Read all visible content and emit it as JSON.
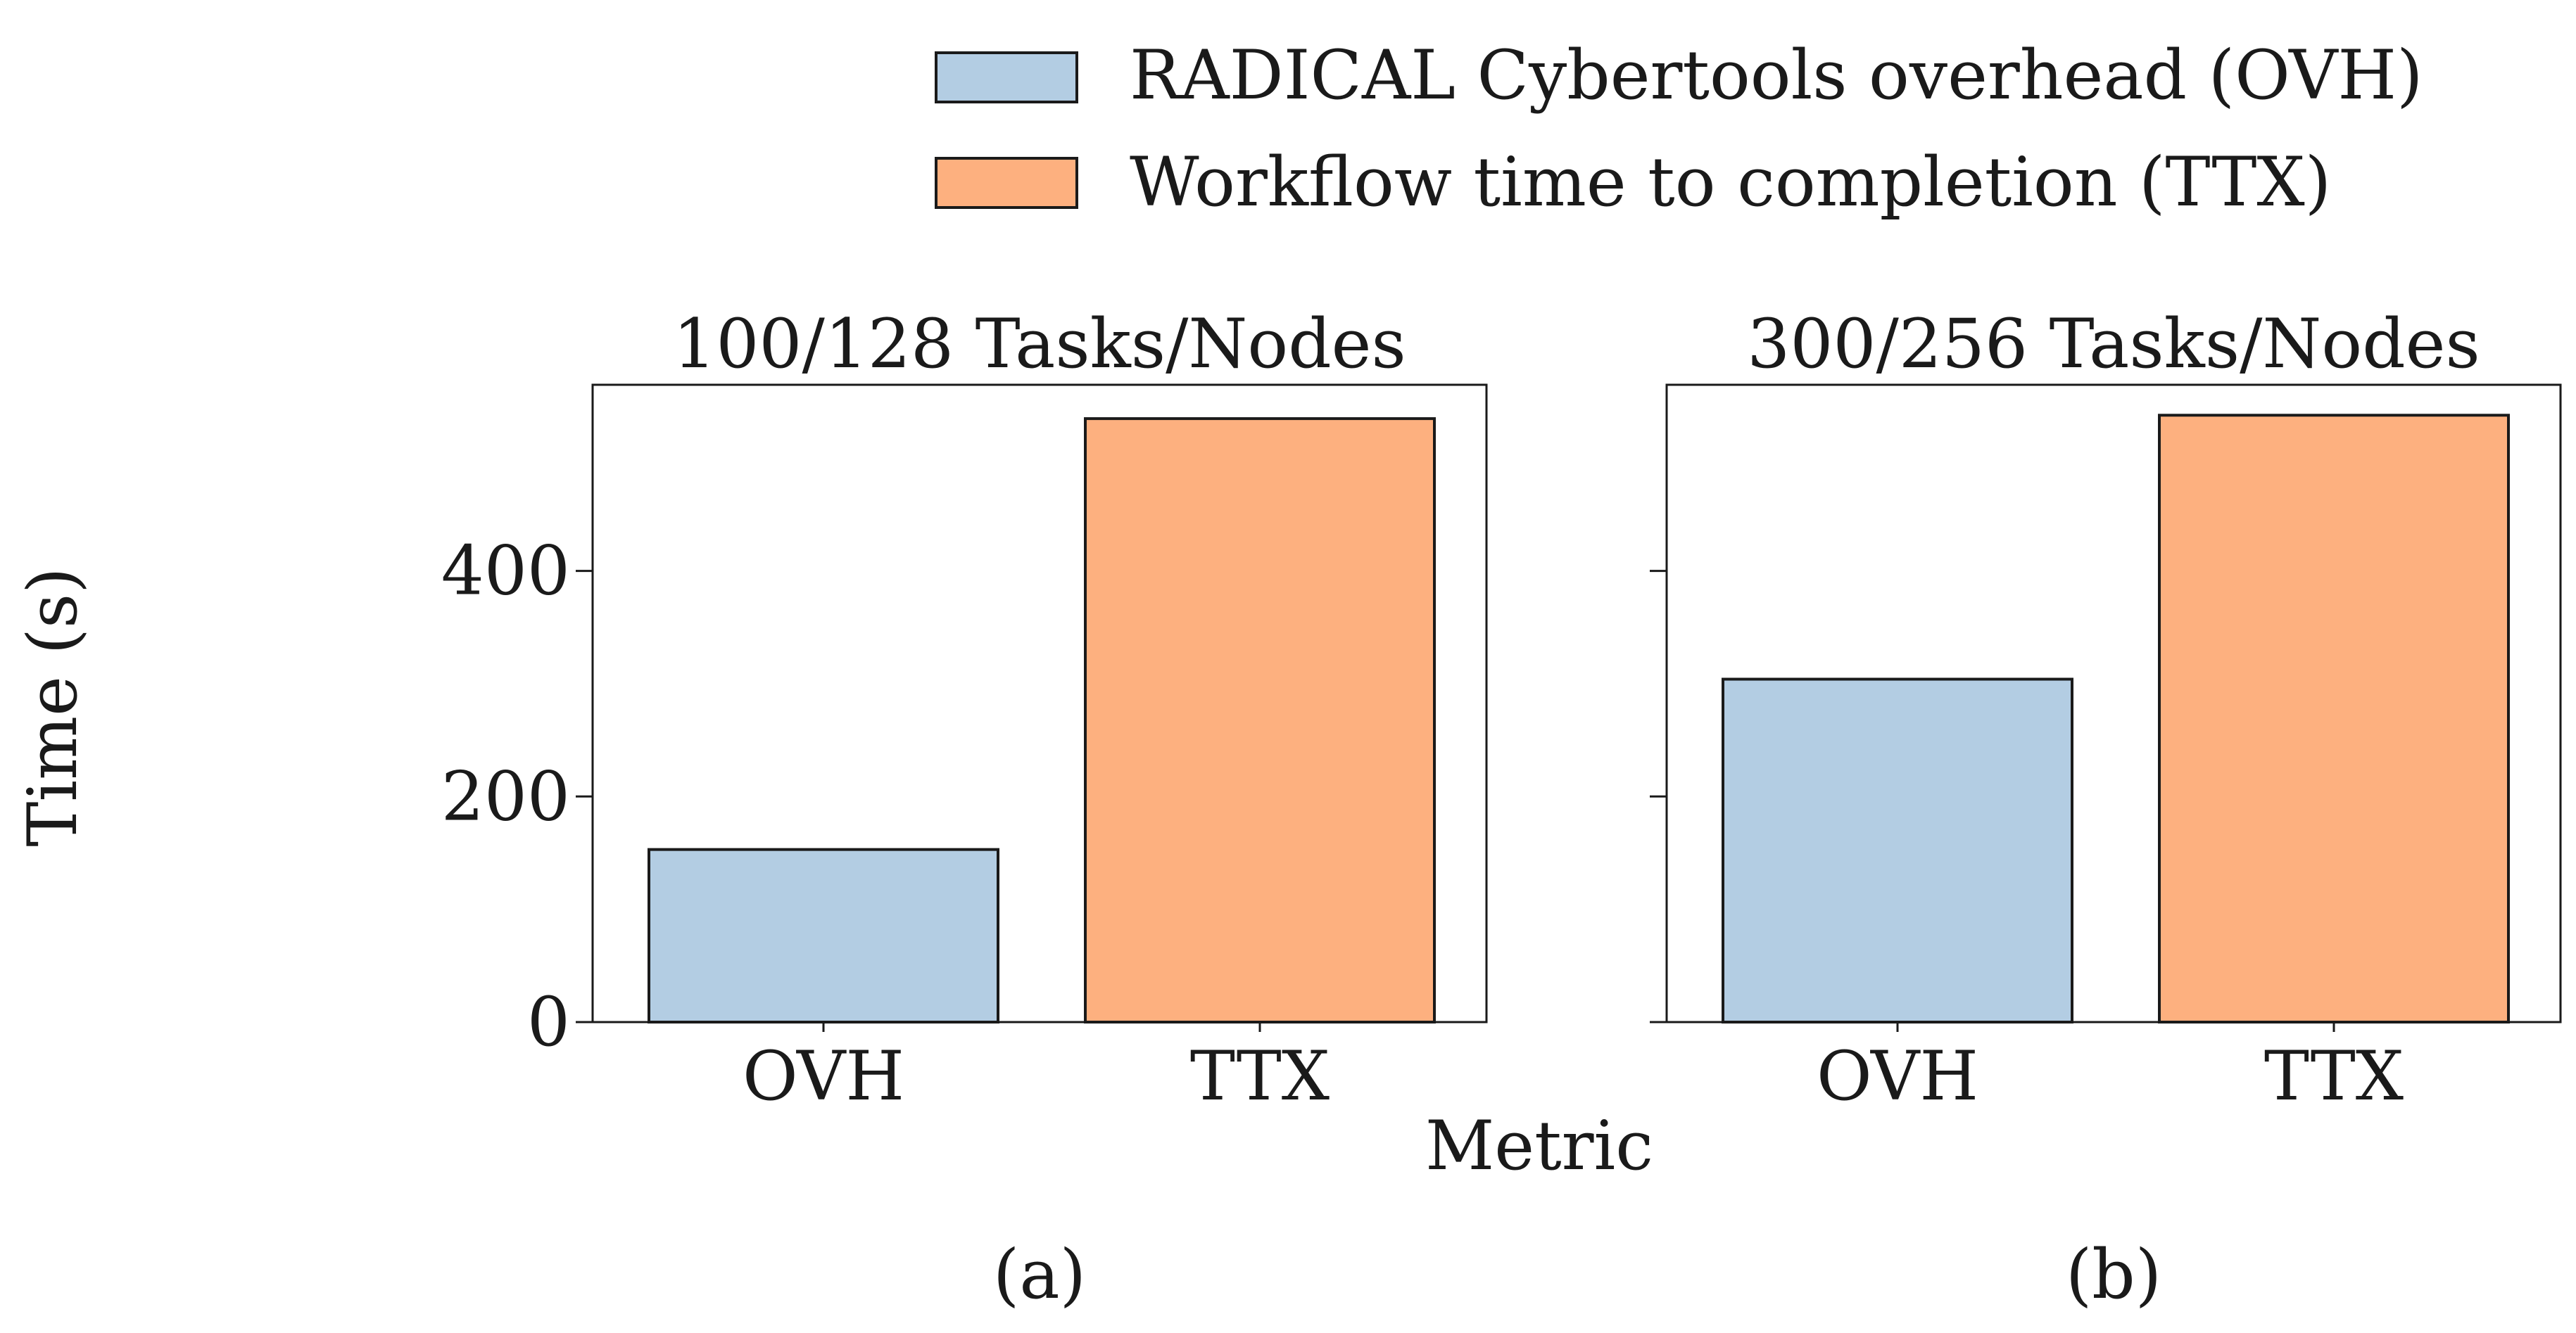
{
  "figure": {
    "ylabel": "Time (s)",
    "xlabel": "Metric",
    "legend": {
      "placement": "top-center",
      "entries": [
        {
          "label": "RADICAL Cybertools overhead (OVH)",
          "color": "#b3cde3"
        },
        {
          "label": "Workflow time to completion (TTX)",
          "color": "#fdb07f"
        }
      ]
    },
    "sharey": true
  },
  "chart_data": [
    {
      "type": "bar",
      "title": "100/128 Tasks/Nodes",
      "panel_label": "(a)",
      "categories": [
        "OVH",
        "TTX"
      ],
      "values": [
        153,
        535
      ],
      "colors": [
        "#b3cde3",
        "#fdb07f"
      ],
      "xlabel": "Metric",
      "ylabel": "Time (s)",
      "ylim": [
        0,
        565
      ],
      "yticks": [
        0,
        200,
        400
      ],
      "ytick_labels": [
        "0",
        "200",
        "400"
      ],
      "grid": false
    },
    {
      "type": "bar",
      "title": "300/256 Tasks/Nodes",
      "panel_label": "(b)",
      "categories": [
        "OVH",
        "TTX"
      ],
      "values": [
        304,
        538
      ],
      "colors": [
        "#b3cde3",
        "#fdb07f"
      ],
      "xlabel": "Metric",
      "ylabel": "Time (s)",
      "ylim": [
        0,
        565
      ],
      "yticks": [
        0,
        200,
        400
      ],
      "ytick_labels": [
        "",
        "",
        ""
      ],
      "grid": false
    }
  ]
}
